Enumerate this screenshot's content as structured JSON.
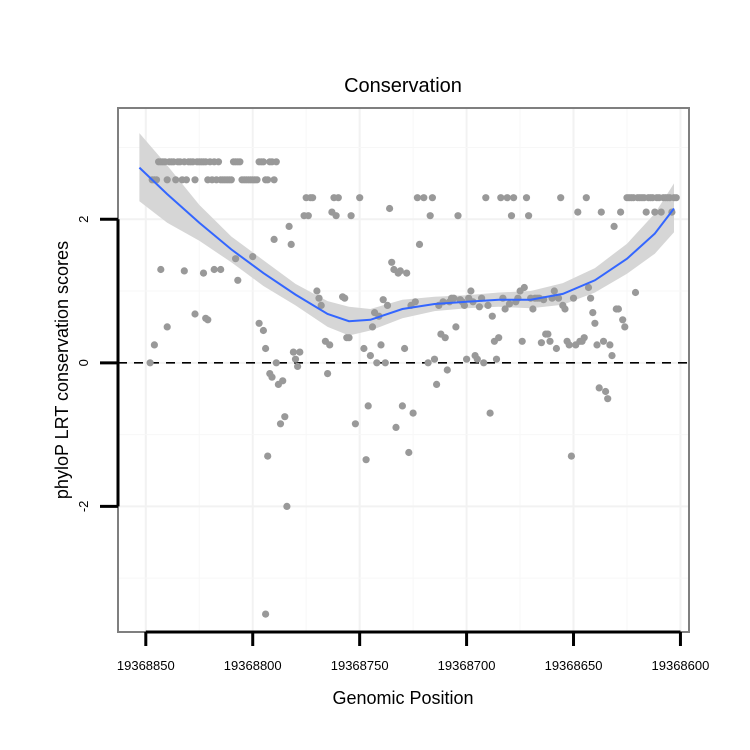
{
  "chart_data": {
    "type": "scatter",
    "title": "Conservation",
    "xlabel": "Genomic Position",
    "ylabel": "phyloP LRT conservation scores",
    "x_reversed": true,
    "xlim": [
      19368863,
      19368596
    ],
    "ylim": [
      -3.75,
      3.55
    ],
    "x_ticks": [
      19368850,
      19368800,
      19368750,
      19368700,
      19368650,
      19368600
    ],
    "x_tick_labels": [
      "19368850",
      "19368800",
      "19368750",
      "19368700",
      "19368650",
      "19368600"
    ],
    "y_ticks": [
      2,
      0,
      -2
    ],
    "y_tick_labels": [
      "2",
      "0",
      "-2"
    ],
    "reference_line": {
      "y": 0,
      "style": "dashed"
    },
    "colors": {
      "points": "#999999",
      "smooth": "#3366ff",
      "ribbon": "#d6d6d6",
      "panel_border": "#7f7f7f"
    },
    "points": [
      [
        19368847,
        2.55
      ],
      [
        19368846,
        2.55
      ],
      [
        19368845,
        2.55
      ],
      [
        19368844,
        2.8
      ],
      [
        19368843,
        2.8
      ],
      [
        19368842,
        2.8
      ],
      [
        19368841,
        2.8
      ],
      [
        19368840,
        2.55
      ],
      [
        19368839,
        2.8
      ],
      [
        19368838,
        2.8
      ],
      [
        19368837,
        2.8
      ],
      [
        19368836,
        2.55
      ],
      [
        19368835,
        2.8
      ],
      [
        19368834,
        2.8
      ],
      [
        19368833,
        2.55
      ],
      [
        19368832,
        2.8
      ],
      [
        19368831,
        2.55
      ],
      [
        19368830,
        2.8
      ],
      [
        19368829,
        2.8
      ],
      [
        19368828,
        2.8
      ],
      [
        19368827,
        2.55
      ],
      [
        19368826,
        2.8
      ],
      [
        19368825,
        2.8
      ],
      [
        19368824,
        2.8
      ],
      [
        19368823,
        2.8
      ],
      [
        19368822,
        2.8
      ],
      [
        19368821,
        2.55
      ],
      [
        19368820,
        2.8
      ],
      [
        19368819,
        2.55
      ],
      [
        19368818,
        2.8
      ],
      [
        19368817,
        2.55
      ],
      [
        19368816,
        2.8
      ],
      [
        19368815,
        2.55
      ],
      [
        19368814,
        2.55
      ],
      [
        19368813,
        2.55
      ],
      [
        19368812,
        2.55
      ],
      [
        19368811,
        2.55
      ],
      [
        19368810,
        2.55
      ],
      [
        19368809,
        2.8
      ],
      [
        19368808,
        2.8
      ],
      [
        19368807,
        2.8
      ],
      [
        19368806,
        2.8
      ],
      [
        19368805,
        2.55
      ],
      [
        19368804,
        2.55
      ],
      [
        19368803,
        2.55
      ],
      [
        19368802,
        2.55
      ],
      [
        19368801,
        2.55
      ],
      [
        19368800,
        2.55
      ],
      [
        19368799,
        2.55
      ],
      [
        19368798,
        2.55
      ],
      [
        19368797,
        2.8
      ],
      [
        19368796,
        2.8
      ],
      [
        19368795,
        2.8
      ],
      [
        19368794,
        2.55
      ],
      [
        19368793,
        2.55
      ],
      [
        19368792,
        2.8
      ],
      [
        19368791,
        2.8
      ],
      [
        19368790,
        2.55
      ],
      [
        19368789,
        2.8
      ],
      [
        19368848,
        0.0
      ],
      [
        19368846,
        0.25
      ],
      [
        19368843,
        1.3
      ],
      [
        19368840,
        0.5
      ],
      [
        19368832,
        1.28
      ],
      [
        19368827,
        0.68
      ],
      [
        19368823,
        1.25
      ],
      [
        19368822,
        0.62
      ],
      [
        19368821,
        0.6
      ],
      [
        19368818,
        1.3
      ],
      [
        19368815,
        1.3
      ],
      [
        19368808,
        1.45
      ],
      [
        19368807,
        1.15
      ],
      [
        19368800,
        1.48
      ],
      [
        19368797,
        0.55
      ],
      [
        19368795,
        0.45
      ],
      [
        19368794,
        0.2
      ],
      [
        19368793,
        -1.3
      ],
      [
        19368792,
        -0.15
      ],
      [
        19368791,
        -0.2
      ],
      [
        19368790,
        1.72
      ],
      [
        19368789,
        0.0
      ],
      [
        19368788,
        -0.3
      ],
      [
        19368787,
        -0.85
      ],
      [
        19368786,
        -0.25
      ],
      [
        19368785,
        -0.75
      ],
      [
        19368784,
        -2.0
      ],
      [
        19368783,
        1.9
      ],
      [
        19368782,
        1.65
      ],
      [
        19368781,
        0.15
      ],
      [
        19368780,
        0.05
      ],
      [
        19368779,
        -0.05
      ],
      [
        19368778,
        0.15
      ],
      [
        19368776,
        2.05
      ],
      [
        19368775,
        2.3
      ],
      [
        19368774,
        2.05
      ],
      [
        19368773,
        2.3
      ],
      [
        19368772,
        2.3
      ],
      [
        19368770,
        1.0
      ],
      [
        19368769,
        0.9
      ],
      [
        19368768,
        0.8
      ],
      [
        19368766,
        0.3
      ],
      [
        19368765,
        -0.15
      ],
      [
        19368764,
        0.25
      ],
      [
        19368763,
        2.1
      ],
      [
        19368762,
        2.3
      ],
      [
        19368761,
        2.05
      ],
      [
        19368760,
        2.3
      ],
      [
        19368758,
        0.92
      ],
      [
        19368757,
        0.9
      ],
      [
        19368756,
        0.35
      ],
      [
        19368755,
        0.35
      ],
      [
        19368754,
        2.05
      ],
      [
        19368752,
        -0.85
      ],
      [
        19368750,
        2.3
      ],
      [
        19368748,
        0.2
      ],
      [
        19368747,
        -1.35
      ],
      [
        19368746,
        -0.6
      ],
      [
        19368745,
        0.1
      ],
      [
        19368744,
        0.5
      ],
      [
        19368743,
        0.7
      ],
      [
        19368742,
        0.0
      ],
      [
        19368741,
        0.65
      ],
      [
        19368740,
        0.25
      ],
      [
        19368739,
        0.88
      ],
      [
        19368738,
        0.0
      ],
      [
        19368737,
        0.8
      ],
      [
        19368736,
        2.15
      ],
      [
        19368735,
        1.4
      ],
      [
        19368734,
        1.3
      ],
      [
        19368733,
        -0.9
      ],
      [
        19368732,
        1.25
      ],
      [
        19368731,
        1.28
      ],
      [
        19368730,
        -0.6
      ],
      [
        19368729,
        0.2
      ],
      [
        19368728,
        1.25
      ],
      [
        19368727,
        -1.25
      ],
      [
        19368726,
        0.8
      ],
      [
        19368725,
        -0.7
      ],
      [
        19368724,
        0.85
      ],
      [
        19368723,
        2.3
      ],
      [
        19368722,
        1.65
      ],
      [
        19368720,
        2.3
      ],
      [
        19368718,
        0.0
      ],
      [
        19368717,
        2.05
      ],
      [
        19368716,
        2.3
      ],
      [
        19368715,
        0.05
      ],
      [
        19368714,
        -0.3
      ],
      [
        19368713,
        0.8
      ],
      [
        19368712,
        0.4
      ],
      [
        19368711,
        0.85
      ],
      [
        19368710,
        0.35
      ],
      [
        19368709,
        -0.1
      ],
      [
        19368708,
        0.85
      ],
      [
        19368707,
        0.9
      ],
      [
        19368706,
        0.9
      ],
      [
        19368705,
        0.5
      ],
      [
        19368704,
        2.05
      ],
      [
        19368703,
        0.88
      ],
      [
        19368702,
        0.85
      ],
      [
        19368701,
        0.8
      ],
      [
        19368700,
        0.05
      ],
      [
        19368699,
        0.9
      ],
      [
        19368698,
        1.0
      ],
      [
        19368697,
        0.85
      ],
      [
        19368696,
        0.1
      ],
      [
        19368695,
        0.05
      ],
      [
        19368694,
        0.78
      ],
      [
        19368693,
        0.9
      ],
      [
        19368692,
        0.0
      ],
      [
        19368691,
        2.3
      ],
      [
        19368690,
        0.8
      ],
      [
        19368689,
        -0.7
      ],
      [
        19368688,
        0.65
      ],
      [
        19368687,
        0.3
      ],
      [
        19368686,
        0.05
      ],
      [
        19368685,
        0.35
      ],
      [
        19368684,
        2.3
      ],
      [
        19368683,
        0.9
      ],
      [
        19368682,
        0.75
      ],
      [
        19368681,
        2.3
      ],
      [
        19368680,
        0.82
      ],
      [
        19368679,
        2.05
      ],
      [
        19368678,
        2.3
      ],
      [
        19368677,
        0.85
      ],
      [
        19368676,
        0.9
      ],
      [
        19368675,
        1.0
      ],
      [
        19368674,
        0.3
      ],
      [
        19368673,
        1.05
      ],
      [
        19368672,
        2.3
      ],
      [
        19368671,
        2.05
      ],
      [
        19368670,
        0.9
      ],
      [
        19368669,
        0.75
      ],
      [
        19368668,
        0.9
      ],
      [
        19368667,
        0.9
      ],
      [
        19368666,
        0.9
      ],
      [
        19368665,
        0.28
      ],
      [
        19368664,
        0.88
      ],
      [
        19368663,
        0.4
      ],
      [
        19368662,
        0.4
      ],
      [
        19368661,
        0.3
      ],
      [
        19368660,
        0.9
      ],
      [
        19368659,
        1.0
      ],
      [
        19368658,
        0.2
      ],
      [
        19368657,
        0.9
      ],
      [
        19368656,
        2.3
      ],
      [
        19368655,
        0.8
      ],
      [
        19368654,
        0.75
      ],
      [
        19368653,
        0.3
      ],
      [
        19368652,
        0.25
      ],
      [
        19368651,
        -1.3
      ],
      [
        19368650,
        0.9
      ],
      [
        19368649,
        0.25
      ],
      [
        19368648,
        2.1
      ],
      [
        19368647,
        0.3
      ],
      [
        19368646,
        0.3
      ],
      [
        19368645,
        0.35
      ],
      [
        19368644,
        2.3
      ],
      [
        19368643,
        1.05
      ],
      [
        19368642,
        0.9
      ],
      [
        19368641,
        0.7
      ],
      [
        19368640,
        0.55
      ],
      [
        19368639,
        0.25
      ],
      [
        19368638,
        -0.35
      ],
      [
        19368637,
        2.1
      ],
      [
        19368636,
        0.3
      ],
      [
        19368635,
        -0.4
      ],
      [
        19368634,
        -0.5
      ],
      [
        19368633,
        0.25
      ],
      [
        19368632,
        0.1
      ],
      [
        19368631,
        1.9
      ],
      [
        19368630,
        0.75
      ],
      [
        19368629,
        0.75
      ],
      [
        19368628,
        2.1
      ],
      [
        19368627,
        0.6
      ],
      [
        19368626,
        0.5
      ],
      [
        19368625,
        2.3
      ],
      [
        19368624,
        2.3
      ],
      [
        19368623,
        2.3
      ],
      [
        19368622,
        2.3
      ],
      [
        19368621,
        0.98
      ],
      [
        19368620,
        2.3
      ],
      [
        19368619,
        2.3
      ],
      [
        19368618,
        2.3
      ],
      [
        19368617,
        2.3
      ],
      [
        19368616,
        2.1
      ],
      [
        19368615,
        2.3
      ],
      [
        19368614,
        2.3
      ],
      [
        19368613,
        2.3
      ],
      [
        19368612,
        2.1
      ],
      [
        19368611,
        2.3
      ],
      [
        19368610,
        2.3
      ],
      [
        19368609,
        2.1
      ],
      [
        19368608,
        2.3
      ],
      [
        19368607,
        2.3
      ],
      [
        19368606,
        2.3
      ],
      [
        19368605,
        2.3
      ],
      [
        19368604,
        2.1
      ],
      [
        19368603,
        2.3
      ],
      [
        19368602,
        2.3
      ],
      [
        19368794,
        -3.5
      ]
    ],
    "smooth": {
      "x": [
        19368853,
        19368840,
        19368825,
        19368810,
        19368795,
        19368780,
        19368765,
        19368755,
        19368745,
        19368730,
        19368715,
        19368700,
        19368685,
        19368670,
        19368655,
        19368640,
        19368625,
        19368612,
        19368603
      ],
      "y": [
        2.72,
        2.35,
        1.95,
        1.58,
        1.25,
        0.95,
        0.68,
        0.58,
        0.6,
        0.75,
        0.82,
        0.85,
        0.88,
        0.88,
        0.96,
        1.15,
        1.45,
        1.8,
        2.15
      ],
      "lower": [
        2.25,
        1.95,
        1.7,
        1.4,
        1.07,
        0.8,
        0.5,
        0.38,
        0.45,
        0.62,
        0.72,
        0.76,
        0.78,
        0.76,
        0.81,
        0.98,
        1.24,
        1.52,
        1.82
      ],
      "upper": [
        3.2,
        2.75,
        2.2,
        1.76,
        1.43,
        1.1,
        0.86,
        0.78,
        0.75,
        0.88,
        0.92,
        0.94,
        0.98,
        1.0,
        1.11,
        1.32,
        1.66,
        2.08,
        2.5
      ]
    }
  }
}
